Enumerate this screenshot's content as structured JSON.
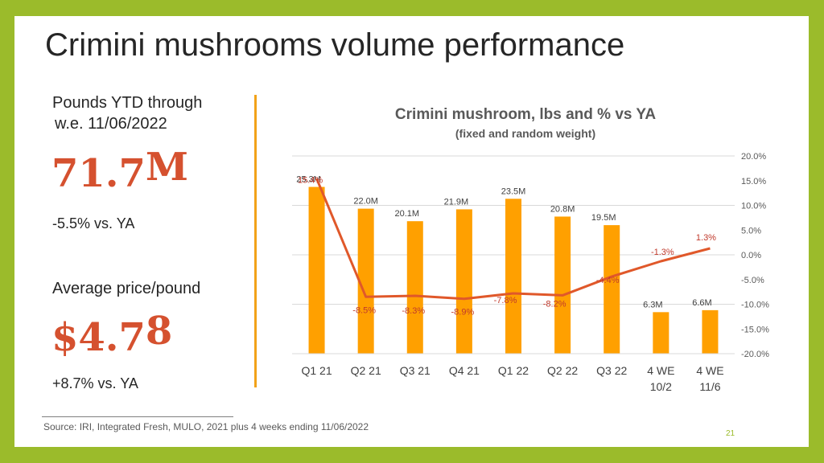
{
  "slide": {
    "title": "Crimini mushrooms volume performance",
    "left_panel": {
      "volume_label_line1": "Pounds YTD through",
      "volume_label_line2": "w.e. 11/06/2022",
      "volume_number": "71.7",
      "volume_unit": "M",
      "volume_change": "-5.5% vs. YA",
      "price_label": "Average price/pound",
      "price_main": "$4.7",
      "price_last": "8",
      "price_change": "+8.7% vs. YA"
    },
    "source": "Source: IRI, Integrated Fresh, MULO, 2021 plus 4 weeks ending 11/06/2022",
    "page_number": "21"
  },
  "colors": {
    "background_frame": "#9bbb2b",
    "accent_red": "#d5512f",
    "bar_orange": "#ffa000",
    "line_orange": "#e0582a",
    "divider": "#f2a218",
    "text_dark": "#262626",
    "text_gray": "#595959"
  },
  "chart_data": {
    "type": "bar",
    "title": "Crimini mushroom, lbs and % vs YA",
    "subtitle": "(fixed and random weight)",
    "categories": [
      [
        "Q1 21"
      ],
      [
        "Q2 21"
      ],
      [
        "Q3 21"
      ],
      [
        "Q4 21"
      ],
      [
        "Q1 22"
      ],
      [
        "Q2 22"
      ],
      [
        "Q3 22"
      ],
      [
        "4 WE",
        "10/2"
      ],
      [
        "4 WE",
        "11/6"
      ]
    ],
    "series": [
      {
        "type": "bar",
        "values": [
          25.3,
          22.0,
          20.1,
          21.9,
          23.5,
          20.8,
          19.5,
          6.3,
          6.6
        ],
        "labels": [
          "25.3M",
          "22.0M",
          "20.1M",
          "21.9M",
          "23.5M",
          "20.8M",
          "19.5M",
          "6.3M",
          "6.6M"
        ]
      },
      {
        "type": "line",
        "axis": "secondary",
        "values": [
          15.4,
          -8.5,
          -8.3,
          -8.9,
          -7.8,
          -8.2,
          -4.4,
          -1.3,
          1.3
        ],
        "labels": [
          "15.4%",
          "-8.5%",
          "-8.3%",
          "-8.9%",
          "-7.8%",
          "-8.2%",
          "-4.4%",
          "-1.3%",
          "1.3%"
        ]
      }
    ],
    "ylim_primary": [
      0,
      30
    ],
    "ylim_secondary": [
      -20,
      20
    ],
    "secondary_ticks": [
      "20.0%",
      "15.0%",
      "10.0%",
      "5.0%",
      "0.0%",
      "-5.0%",
      "-10.0%",
      "-15.0%",
      "-20.0%"
    ],
    "grid": true,
    "legend": "none"
  }
}
